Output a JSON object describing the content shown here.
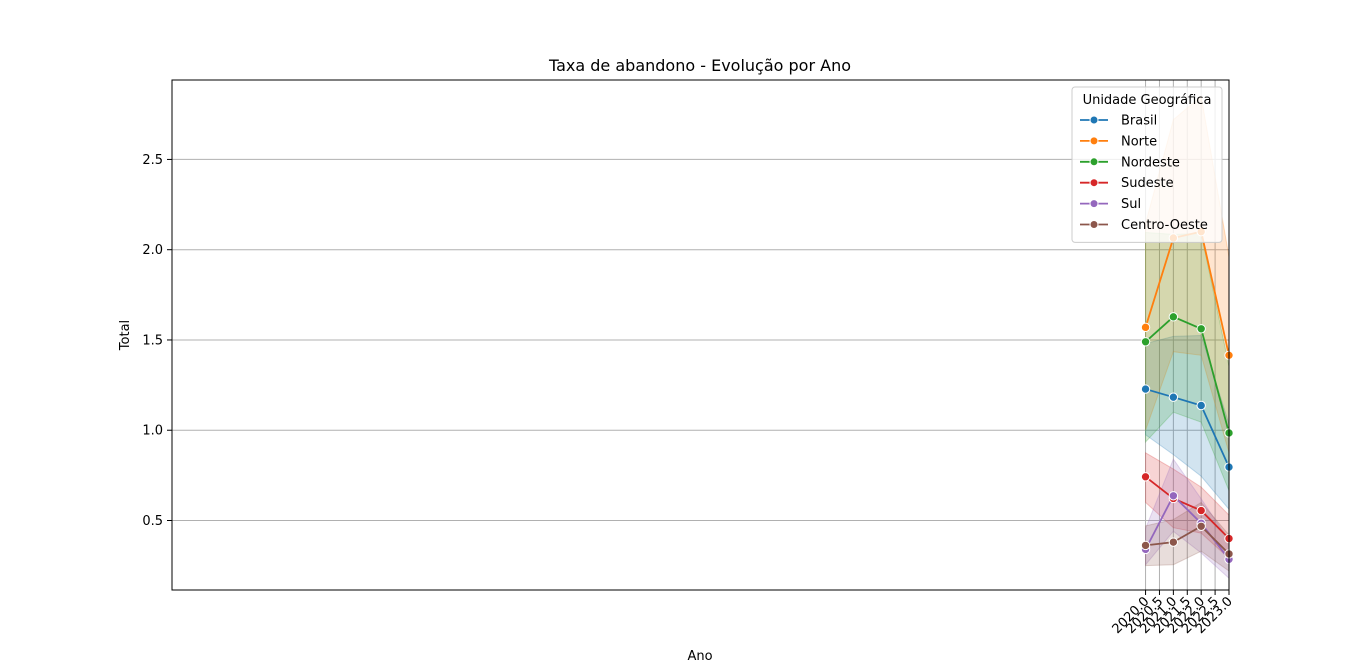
{
  "chart_data": {
    "type": "line",
    "title": "Taxa de abandono - Evolução por Ano",
    "xlabel": "Ano",
    "ylabel": "Total",
    "xlim": [
      1.985,
      2.023
    ],
    "ylim": [
      0.115,
      2.94
    ],
    "x_ticks": [
      2020.0,
      2020.5,
      2021.0,
      2021.5,
      2022.0,
      2022.5,
      2023.0
    ],
    "x_tick_labels": [
      "2020.0",
      "2020.5",
      "2021.0",
      "2021.5",
      "2022.0",
      "2022.5",
      "2023.0"
    ],
    "y_ticks": [
      0.5,
      1.0,
      1.5,
      2.0,
      2.5
    ],
    "y_tick_labels": [
      "0.5",
      "1.0",
      "1.5",
      "2.0",
      "2.5"
    ],
    "grid": true,
    "legend": {
      "title": "Unidade Geográfica",
      "placement": "top-right"
    },
    "x": [
      2020,
      2021,
      2022,
      2023
    ],
    "series": [
      {
        "name": "Brasil",
        "color": "#1f77b4",
        "values": [
          1.228,
          1.183,
          1.137,
          0.796
        ],
        "lower": [
          0.975,
          0.865,
          0.745,
          0.562
        ],
        "upper": [
          1.48,
          1.52,
          1.525,
          1.035
        ]
      },
      {
        "name": "Norte",
        "color": "#ff7f0e",
        "values": [
          1.57,
          2.065,
          2.1,
          1.415
        ],
        "lower": [
          1.0,
          1.435,
          1.415,
          0.875
        ],
        "upper": [
          2.145,
          2.72,
          2.85,
          1.96
        ]
      },
      {
        "name": "Nordeste",
        "color": "#2ca02c",
        "values": [
          1.49,
          1.628,
          1.562,
          0.985
        ],
        "lower": [
          0.935,
          1.1,
          1.045,
          0.665
        ],
        "upper": [
          2.095,
          2.085,
          2.09,
          1.355
        ]
      },
      {
        "name": "Sudeste",
        "color": "#d62728",
        "values": [
          0.742,
          0.622,
          0.555,
          0.4
        ],
        "lower": [
          0.6,
          0.46,
          0.43,
          0.29
        ],
        "upper": [
          0.875,
          0.785,
          0.685,
          0.53
        ]
      },
      {
        "name": "Sul",
        "color": "#9467bd",
        "values": [
          0.34,
          0.637,
          0.485,
          0.285
        ],
        "lower": [
          0.255,
          0.44,
          0.32,
          0.18
        ],
        "upper": [
          0.455,
          0.84,
          0.62,
          0.39
        ]
      },
      {
        "name": "Centro-Oeste",
        "color": "#8c564b",
        "values": [
          0.362,
          0.38,
          0.468,
          0.315
        ],
        "lower": [
          0.25,
          0.255,
          0.33,
          0.22
        ],
        "upper": [
          0.47,
          0.505,
          0.6,
          0.42
        ]
      }
    ]
  }
}
